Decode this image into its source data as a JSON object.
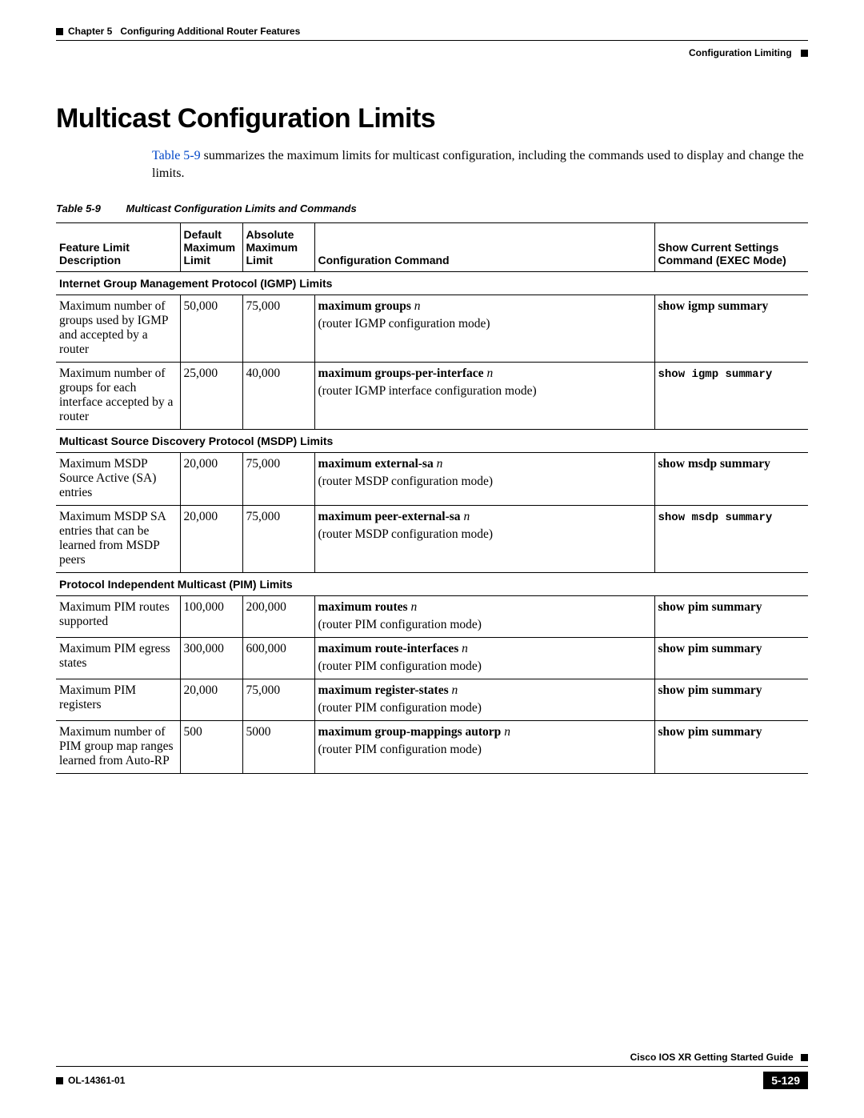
{
  "header": {
    "chapter_label": "Chapter 5",
    "chapter_title": "Configuring Additional Router Features",
    "section_right": "Configuration Limiting"
  },
  "section": {
    "title": "Multicast Configuration Limits",
    "intro_link": "Table 5-9",
    "intro_rest": " summarizes the maximum limits for multicast configuration, including the commands used to display and change the limits."
  },
  "table": {
    "caption_label": "Table 5-9",
    "caption_text": "Multicast Configuration Limits and Commands",
    "columns": {
      "desc": "Feature Limit Description",
      "def": "Default Maximum Limit",
      "abs": "Absolute Maximum Limit",
      "cmd": "Configuration Command",
      "show": "Show Current Settings Command (EXEC Mode)"
    },
    "groups": [
      {
        "title": "Internet Group Management Protocol (IGMP) Limits",
        "rows": [
          {
            "desc": "Maximum number of groups used by IGMP and accepted by a router",
            "def": "50,000",
            "abs": "75,000",
            "cmd_bold": "maximum groups",
            "cmd_ital": "n",
            "cmd_sub": "(router IGMP configuration mode)",
            "show_bold": "show igmp summary",
            "show_mono": false
          },
          {
            "desc": "Maximum number of groups for each interface accepted by a router",
            "def": "25,000",
            "abs": "40,000",
            "cmd_bold": "maximum groups-per-interface",
            "cmd_ital": "n",
            "cmd_sub": "(router IGMP interface configuration mode)",
            "show_bold": "show igmp summary",
            "show_mono": true
          }
        ]
      },
      {
        "title": "Multicast Source Discovery Protocol (MSDP) Limits",
        "rows": [
          {
            "desc": "Maximum MSDP Source Active (SA) entries",
            "def": "20,000",
            "abs": "75,000",
            "cmd_bold": "maximum external-sa",
            "cmd_ital": "n",
            "cmd_sub": "(router MSDP configuration mode)",
            "show_bold": "show msdp summary",
            "show_mono": false
          },
          {
            "desc": "Maximum MSDP SA entries that can be learned from MSDP peers",
            "def": "20,000",
            "abs": "75,000",
            "cmd_bold": "maximum peer-external-sa",
            "cmd_ital": "n",
            "cmd_sub": "(router MSDP configuration mode)",
            "show_bold": "show msdp summary",
            "show_mono": true
          }
        ]
      },
      {
        "title": "Protocol Independent Multicast (PIM) Limits",
        "rows": [
          {
            "desc": "Maximum PIM routes supported",
            "def": "100,000",
            "abs": "200,000",
            "cmd_bold": "maximum routes",
            "cmd_ital": "n",
            "cmd_sub": "(router PIM configuration mode)",
            "show_bold": "show pim summary",
            "show_mono": false
          },
          {
            "desc": "Maximum PIM egress states",
            "def": "300,000",
            "abs": "600,000",
            "cmd_bold": "maximum route-interfaces",
            "cmd_ital": "n",
            "cmd_sub": "(router PIM configuration mode)",
            "show_bold": "show pim summary",
            "show_mono": false
          },
          {
            "desc": "Maximum PIM registers",
            "def": "20,000",
            "abs": "75,000",
            "cmd_bold": "maximum register-states",
            "cmd_ital": "n",
            "cmd_sub": "(router PIM configuration mode)",
            "show_bold": "show pim summary",
            "show_mono": false
          },
          {
            "desc": "Maximum number of PIM group map ranges learned from Auto-RP",
            "def": "500",
            "abs": "5000",
            "cmd_bold": "maximum group-mappings autorp",
            "cmd_ital": "n",
            "cmd_sub": "(router PIM configuration mode)",
            "show_bold": "show pim summary",
            "show_mono": false
          }
        ]
      }
    ]
  },
  "footer": {
    "guide": "Cisco IOS XR Getting Started Guide",
    "doc_id": "OL-14361-01",
    "page": "5-129"
  }
}
